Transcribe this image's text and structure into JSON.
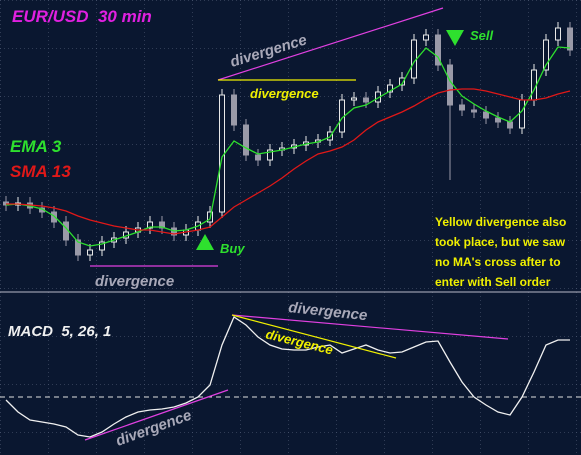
{
  "chart_data": [
    {
      "type": "candlestick",
      "title": "EUR/USD  30 min",
      "ylim": [
        0,
        290
      ],
      "open": [
        88,
        85,
        87,
        82,
        78,
        68,
        50,
        35,
        40,
        48,
        52,
        58,
        62,
        68,
        62,
        55,
        60,
        68,
        78,
        195,
        165,
        135,
        130,
        140,
        142,
        145,
        148,
        150,
        158,
        190,
        192,
        188,
        198,
        205,
        212,
        250,
        255,
        225,
        185,
        180,
        178,
        172,
        168,
        162,
        190,
        220,
        250,
        262
      ],
      "high": [
        94,
        93,
        93,
        88,
        84,
        74,
        56,
        46,
        54,
        58,
        64,
        68,
        74,
        74,
        68,
        66,
        74,
        84,
        201,
        201,
        171,
        141,
        146,
        148,
        151,
        154,
        156,
        164,
        196,
        198,
        198,
        204,
        211,
        218,
        256,
        261,
        261,
        231,
        191,
        186,
        184,
        178,
        174,
        196,
        226,
        256,
        268,
        268
      ],
      "low": [
        79,
        79,
        76,
        72,
        62,
        44,
        29,
        29,
        34,
        42,
        46,
        52,
        56,
        56,
        49,
        49,
        54,
        62,
        72,
        159,
        129,
        124,
        124,
        134,
        136,
        139,
        142,
        144,
        152,
        184,
        182,
        182,
        192,
        199,
        206,
        244,
        219,
        110,
        174,
        172,
        166,
        162,
        156,
        156,
        184,
        214,
        244,
        234
      ],
      "close": [
        85,
        87,
        82,
        78,
        68,
        50,
        35,
        40,
        48,
        52,
        58,
        62,
        68,
        62,
        55,
        60,
        68,
        78,
        195,
        165,
        135,
        130,
        140,
        142,
        145,
        148,
        150,
        158,
        190,
        192,
        188,
        198,
        205,
        212,
        250,
        255,
        225,
        185,
        180,
        178,
        172,
        168,
        162,
        190,
        220,
        250,
        262,
        240
      ],
      "up_color": "#e8e8e8",
      "down_color": "#9a9aa8",
      "series": [
        {
          "name": "EMA 3",
          "color": "#2ee02e",
          "values": [
            85,
            86,
            84,
            81,
            74,
            62,
            48,
            44,
            46,
            50,
            54,
            58,
            63,
            63,
            59,
            60,
            64,
            71,
            133,
            149,
            142,
            136,
            138,
            140,
            143,
            146,
            148,
            153,
            172,
            182,
            185,
            192,
            199,
            206,
            228,
            242,
            233,
            209,
            194,
            186,
            179,
            173,
            168,
            179,
            200,
            225,
            243,
            242
          ]
        },
        {
          "name": "SMA 13",
          "color": "#e01818",
          "values": [
            86,
            86,
            85,
            84,
            82,
            79,
            74,
            70,
            67,
            64,
            62,
            60,
            60,
            58,
            56,
            58,
            60,
            63,
            73,
            83,
            90,
            97,
            104,
            112,
            121,
            129,
            136,
            139,
            143,
            150,
            160,
            168,
            173,
            178,
            184,
            191,
            197,
            200,
            201,
            201,
            199,
            196,
            193,
            190,
            190,
            192,
            196,
            199
          ]
        }
      ],
      "annotations": {
        "buy": "Buy",
        "sell": "Sell",
        "divergence_top": "divergence",
        "divergence_yellow": "divergence",
        "divergence_bottom": "divergence",
        "note": [
          "Yellow divergence also",
          "took place, but we saw",
          "no MA's cross after to",
          "enter with Sell order"
        ]
      }
    },
    {
      "type": "line",
      "title": "MACD  5, 26, 1",
      "ylim": [
        -58,
        107
      ],
      "series": [
        {
          "color": "#f0f0f0",
          "values": [
            -3,
            -15,
            -23,
            -25,
            -27,
            -30,
            -38,
            -40,
            -35,
            -27,
            -20,
            -15,
            -13,
            -12,
            -10,
            -6,
            0,
            12,
            52,
            80,
            72,
            60,
            52,
            48,
            47,
            47,
            50,
            52,
            44,
            48,
            52,
            47,
            44,
            45,
            50,
            55,
            56,
            35,
            15,
            0,
            -8,
            -15,
            -18,
            0,
            25,
            52,
            57,
            57
          ]
        }
      ],
      "annotations": {
        "divergence_top": "divergence",
        "divergence_yellow": "divergence",
        "divergence_bottom": "divergence"
      }
    }
  ]
}
